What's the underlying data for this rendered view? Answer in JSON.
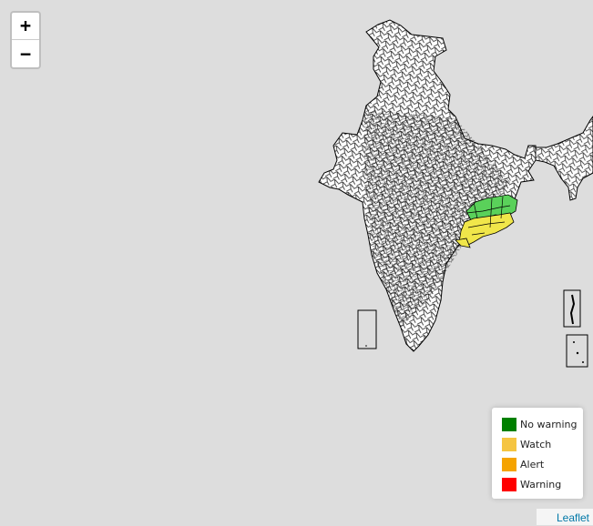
{
  "zoom": {
    "in_label": "+",
    "out_label": "−"
  },
  "legend": {
    "items": [
      {
        "label": "No warning",
        "color": "#008000"
      },
      {
        "label": "Watch",
        "color": "#f5c542"
      },
      {
        "label": "Alert",
        "color": "#f5a300"
      },
      {
        "label": "Warning",
        "color": "#ff0000"
      }
    ]
  },
  "attribution": {
    "label": "Leaflet"
  },
  "map": {
    "background": "#dddddd",
    "district_outline_color": "#000000",
    "highlighted_region_colors": [
      "#5ad15a",
      "#f0e64a",
      "#e6d23a"
    ]
  }
}
